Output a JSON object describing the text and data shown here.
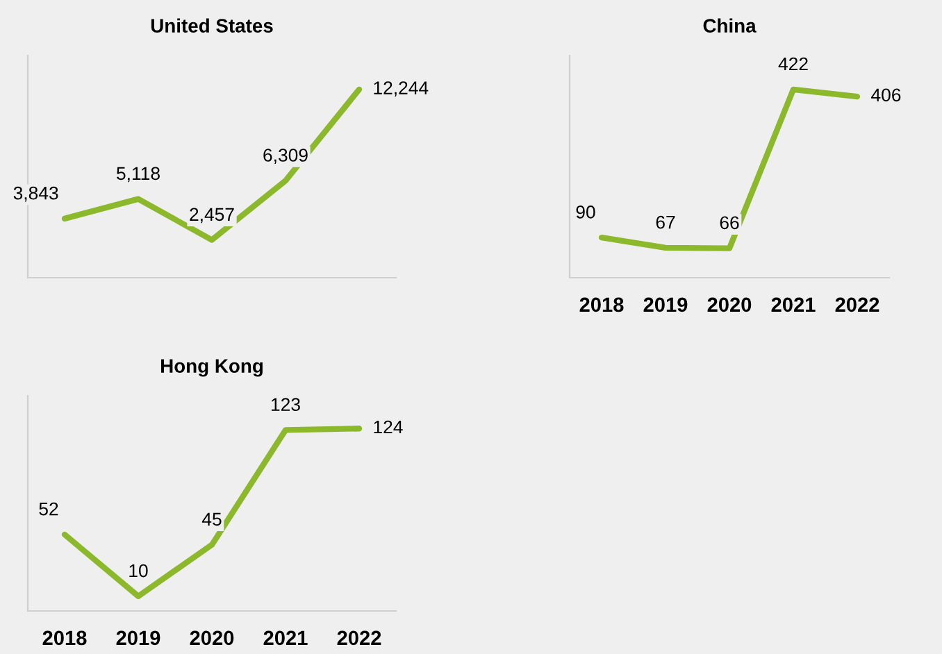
{
  "chart_data": [
    {
      "type": "line",
      "title": "United States",
      "categories": [
        null,
        null,
        null,
        null,
        null
      ],
      "values": [
        3843,
        5118,
        2457,
        6309,
        12244
      ],
      "color": "#8cb82b",
      "data_labels": true,
      "value_labels": [
        "3,843",
        "5,118",
        "2,457",
        "6,309",
        "12,244"
      ],
      "tick_labels": false,
      "grid": false,
      "legend": false,
      "marker": "none",
      "line_style": "solid"
    },
    {
      "type": "line",
      "title": "China",
      "categories": [
        "2018",
        "2019",
        "2020",
        "2021",
        "2022"
      ],
      "values": [
        90,
        67,
        66,
        422,
        406
      ],
      "color": "#8cb82b",
      "data_labels": true,
      "tick_labels": "x",
      "grid": false,
      "legend": false,
      "marker": "none",
      "line_style": "solid"
    },
    {
      "type": "line",
      "title": "Hong Kong",
      "categories": [
        "2018",
        "2019",
        "2020",
        "2021",
        "2022"
      ],
      "values": [
        52,
        10,
        45,
        123,
        124
      ],
      "color": "#8cb82b",
      "data_labels": true,
      "tick_labels": "x",
      "grid": false,
      "legend": false,
      "marker": "none",
      "line_style": "solid"
    }
  ]
}
